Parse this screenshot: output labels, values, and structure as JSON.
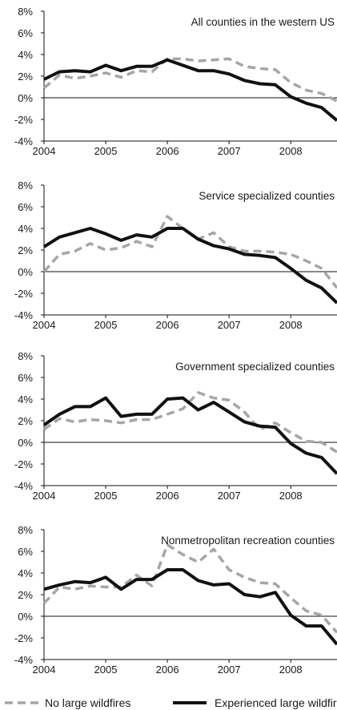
{
  "colors": {
    "no_wildfire": "#a6a6a6",
    "wildfire": "#111111",
    "axis": "#111111"
  },
  "legend": {
    "position": "bottom",
    "items": [
      {
        "label": "No large wildfires",
        "style": "dashed-gray"
      },
      {
        "label": "Experienced large wildfire",
        "style": "solid-black"
      }
    ]
  },
  "chart_data": [
    {
      "type": "line",
      "title": "All counties in the western US",
      "ylim": [
        -0.04,
        0.08
      ],
      "xlim": [
        2004,
        2008.75
      ],
      "y_ticks": [
        -0.04,
        -0.02,
        0,
        0.02,
        0.04,
        0.06,
        0.08
      ],
      "y_tick_labels": [
        "-4%",
        "-2%",
        "0%",
        "2%",
        "4%",
        "6%",
        "8%"
      ],
      "x_ticks": [
        2004,
        2005,
        2006,
        2007,
        2008
      ],
      "x_tick_labels": [
        "2004",
        "2005",
        "2006",
        "2007",
        "2008"
      ],
      "grid": false,
      "x": [
        2004,
        2004.25,
        2004.5,
        2004.75,
        2005,
        2005.25,
        2005.5,
        2005.75,
        2006,
        2006.25,
        2006.5,
        2006.75,
        2007,
        2007.25,
        2007.5,
        2007.75,
        2008,
        2008.25,
        2008.5,
        2008.75
      ],
      "series": [
        {
          "name": "No large wildfires",
          "values": [
            0.009,
            0.021,
            0.018,
            0.02,
            0.023,
            0.019,
            0.025,
            0.024,
            0.036,
            0.036,
            0.034,
            0.035,
            0.036,
            0.029,
            0.027,
            0.026,
            0.014,
            0.007,
            0.004,
            -0.003
          ]
        },
        {
          "name": "Experienced large wildfire",
          "values": [
            0.017,
            0.024,
            0.025,
            0.024,
            0.03,
            0.025,
            0.029,
            0.029,
            0.035,
            0.03,
            0.025,
            0.025,
            0.022,
            0.016,
            0.013,
            0.012,
            0.001,
            -0.005,
            -0.009,
            -0.021
          ]
        }
      ]
    },
    {
      "type": "line",
      "title": "Service specialized counties",
      "ylim": [
        -0.04,
        0.08
      ],
      "xlim": [
        2004,
        2008.75
      ],
      "y_ticks": [
        -0.04,
        -0.02,
        0,
        0.02,
        0.04,
        0.06,
        0.08
      ],
      "y_tick_labels": [
        "-4%",
        "-2%",
        "0%",
        "2%",
        "4%",
        "6%",
        "8%"
      ],
      "x_ticks": [
        2004,
        2005,
        2006,
        2007,
        2008
      ],
      "x_tick_labels": [
        "2004",
        "2005",
        "2006",
        "2007",
        "2008"
      ],
      "grid": false,
      "x": [
        2004,
        2004.25,
        2004.5,
        2004.75,
        2005,
        2005.25,
        2005.5,
        2005.75,
        2006,
        2006.25,
        2006.5,
        2006.75,
        2007,
        2007.25,
        2007.5,
        2007.75,
        2008,
        2008.25,
        2008.5,
        2008.75
      ],
      "series": [
        {
          "name": "No large wildfires",
          "values": [
            0.0,
            0.016,
            0.019,
            0.026,
            0.02,
            0.022,
            0.028,
            0.023,
            0.051,
            0.04,
            0.03,
            0.036,
            0.023,
            0.019,
            0.019,
            0.018,
            0.016,
            0.01,
            0.003,
            -0.015
          ]
        },
        {
          "name": "Experienced large wildfire",
          "values": [
            0.023,
            0.032,
            0.036,
            0.04,
            0.035,
            0.029,
            0.034,
            0.032,
            0.04,
            0.04,
            0.03,
            0.024,
            0.021,
            0.016,
            0.015,
            0.013,
            0.003,
            -0.008,
            -0.015,
            -0.029
          ]
        }
      ]
    },
    {
      "type": "line",
      "title": "Government specialized counties",
      "ylim": [
        -0.04,
        0.08
      ],
      "xlim": [
        2004,
        2008.75
      ],
      "y_ticks": [
        -0.04,
        -0.02,
        0,
        0.02,
        0.04,
        0.06,
        0.08
      ],
      "y_tick_labels": [
        "-4%",
        "-2%",
        "0%",
        "2%",
        "4%",
        "6%",
        "8%"
      ],
      "x_ticks": [
        2004,
        2005,
        2006,
        2007,
        2008
      ],
      "x_tick_labels": [
        "2004",
        "2005",
        "2006",
        "2007",
        "2008"
      ],
      "grid": false,
      "x": [
        2004,
        2004.25,
        2004.5,
        2004.75,
        2005,
        2005.25,
        2005.5,
        2005.75,
        2006,
        2006.25,
        2006.5,
        2006.75,
        2007,
        2007.25,
        2007.5,
        2007.75,
        2008,
        2008.25,
        2008.5,
        2008.75
      ],
      "series": [
        {
          "name": "No large wildfires",
          "values": [
            0.012,
            0.022,
            0.019,
            0.021,
            0.02,
            0.018,
            0.021,
            0.021,
            0.026,
            0.031,
            0.046,
            0.041,
            0.039,
            0.028,
            0.012,
            0.018,
            0.009,
            0.001,
            0.0,
            -0.009
          ]
        },
        {
          "name": "Experienced large wildfire",
          "values": [
            0.016,
            0.026,
            0.033,
            0.033,
            0.041,
            0.024,
            0.026,
            0.026,
            0.04,
            0.041,
            0.03,
            0.037,
            0.028,
            0.019,
            0.015,
            0.014,
            -0.001,
            -0.01,
            -0.014,
            -0.029
          ]
        }
      ]
    },
    {
      "type": "line",
      "title": "Nonmetropolitan recreation counties",
      "ylim": [
        -0.04,
        0.08
      ],
      "xlim": [
        2004,
        2008.75
      ],
      "y_ticks": [
        -0.04,
        -0.02,
        0,
        0.02,
        0.04,
        0.06,
        0.08
      ],
      "y_tick_labels": [
        "-4%",
        "-2%",
        "0%",
        "2%",
        "4%",
        "6%",
        "8%"
      ],
      "x_ticks": [
        2004,
        2005,
        2006,
        2007,
        2008
      ],
      "x_tick_labels": [
        "2004",
        "2005",
        "2006",
        "2007",
        "2008"
      ],
      "grid": false,
      "x": [
        2004,
        2004.25,
        2004.5,
        2004.75,
        2005,
        2005.25,
        2005.5,
        2005.75,
        2006,
        2006.25,
        2006.5,
        2006.75,
        2007,
        2007.25,
        2007.5,
        2007.75,
        2008,
        2008.25,
        2008.5,
        2008.75
      ],
      "series": [
        {
          "name": "No large wildfires",
          "values": [
            0.012,
            0.027,
            0.025,
            0.028,
            0.027,
            0.027,
            0.038,
            0.028,
            0.066,
            0.057,
            0.05,
            0.062,
            0.043,
            0.036,
            0.031,
            0.03,
            0.017,
            0.005,
            0.001,
            -0.015
          ]
        },
        {
          "name": "Experienced large wildfire",
          "values": [
            0.025,
            0.029,
            0.032,
            0.031,
            0.036,
            0.025,
            0.034,
            0.034,
            0.043,
            0.043,
            0.033,
            0.029,
            0.03,
            0.02,
            0.018,
            0.022,
            0.001,
            -0.009,
            -0.009,
            -0.026
          ]
        }
      ]
    }
  ]
}
